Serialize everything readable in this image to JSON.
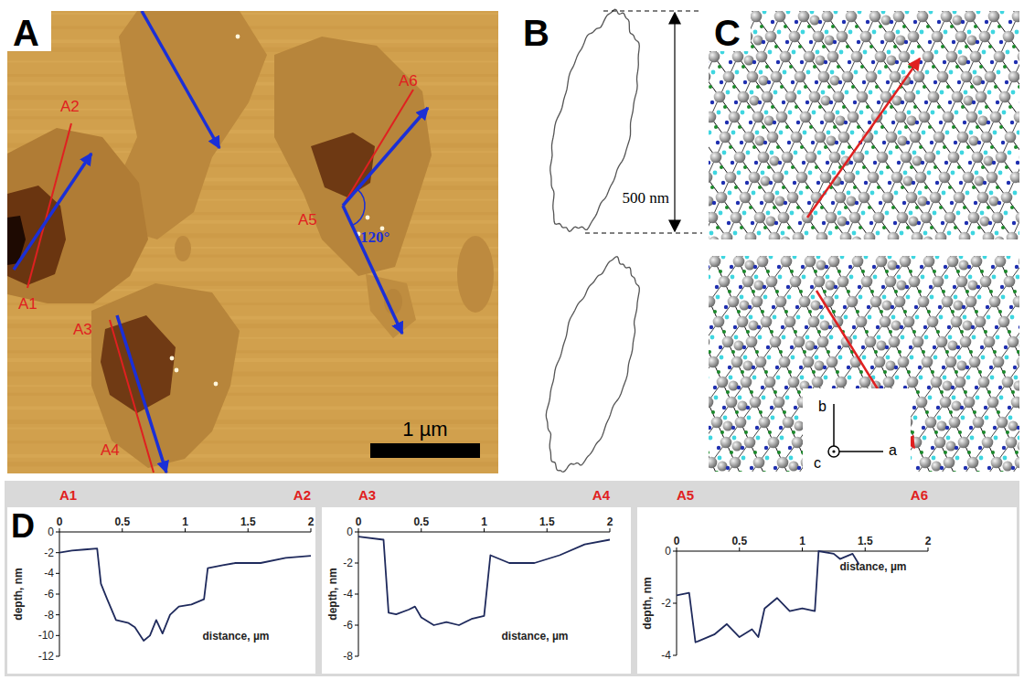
{
  "panel_labels": [
    "A",
    "B",
    "C",
    "D"
  ],
  "panel_a": {
    "markers": [
      "A1",
      "A2",
      "A3",
      "A4",
      "A5",
      "A6"
    ],
    "angle_label": "120°",
    "scale_bar": "1 µm"
  },
  "panel_b": {
    "dimension": "500 nm"
  },
  "panel_c": {
    "axes": [
      "b",
      "a",
      "c"
    ]
  },
  "chart_data": [
    {
      "type": "line",
      "x_label": "distance, µm",
      "y_label": "depth, nm",
      "annotations": [
        "A1",
        "A2"
      ],
      "x": [
        0,
        0.1,
        0.2,
        0.3,
        0.33,
        0.38,
        0.45,
        0.55,
        0.6,
        0.67,
        0.72,
        0.77,
        0.82,
        0.88,
        0.95,
        1.05,
        1.15,
        1.18,
        1.3,
        1.4,
        1.6,
        1.8,
        2
      ],
      "values": [
        -2,
        -1.8,
        -1.7,
        -1.6,
        -5,
        -6.5,
        -8.5,
        -8.8,
        -9.2,
        -10.5,
        -10,
        -8.5,
        -9.8,
        -8,
        -7.2,
        -7,
        -6.5,
        -3.5,
        -3.2,
        -3,
        -3,
        -2.5,
        -2.3
      ],
      "color": "#1f2a5c",
      "xlim": [
        0,
        2
      ],
      "xticks": [
        0,
        0.5,
        1,
        1.5,
        2
      ],
      "ylim": [
        -12,
        0
      ],
      "yticks": [
        0,
        -2,
        -4,
        -6,
        -8,
        -10,
        -12
      ]
    },
    {
      "type": "line",
      "x_label": "distance, µm",
      "y_label": "depth, nm",
      "annotations": [
        "A3",
        "A4"
      ],
      "x": [
        0,
        0.2,
        0.24,
        0.3,
        0.4,
        0.45,
        0.5,
        0.6,
        0.7,
        0.8,
        0.9,
        1.0,
        1.05,
        1.2,
        1.4,
        1.6,
        1.8,
        2
      ],
      "values": [
        -0.3,
        -0.5,
        -5.2,
        -5.3,
        -5,
        -4.8,
        -5.5,
        -6,
        -5.8,
        -6,
        -5.6,
        -5.4,
        -1.5,
        -2,
        -2,
        -1.5,
        -0.8,
        -0.5
      ],
      "color": "#1f2a5c",
      "xlim": [
        0,
        2
      ],
      "xticks": [
        0,
        0.5,
        1,
        1.5,
        2
      ],
      "ylim": [
        -8,
        0
      ],
      "yticks": [
        0,
        -2,
        -4,
        -6,
        -8
      ]
    },
    {
      "type": "line",
      "x_label": "distance, µm",
      "y_label": "depth, nm",
      "annotations": [
        "A5",
        "A6"
      ],
      "x": [
        0,
        0.1,
        0.15,
        0.3,
        0.4,
        0.5,
        0.6,
        0.65,
        0.7,
        0.8,
        0.9,
        1.0,
        1.1,
        1.13,
        1.25,
        1.3,
        1.4,
        1.45
      ],
      "values": [
        -1.7,
        -1.6,
        -3.5,
        -3.2,
        -2.8,
        -3.3,
        -3,
        -3.3,
        -2.2,
        -1.8,
        -2.3,
        -2.2,
        -2.3,
        0,
        -0.1,
        -0.3,
        -0.1,
        -0.5
      ],
      "color": "#1f2a5c",
      "xlim": [
        0,
        2
      ],
      "xticks": [
        0,
        0.5,
        1,
        1.5,
        2
      ],
      "ylim": [
        -4,
        0
      ],
      "yticks": [
        0,
        -2,
        -4
      ]
    }
  ]
}
